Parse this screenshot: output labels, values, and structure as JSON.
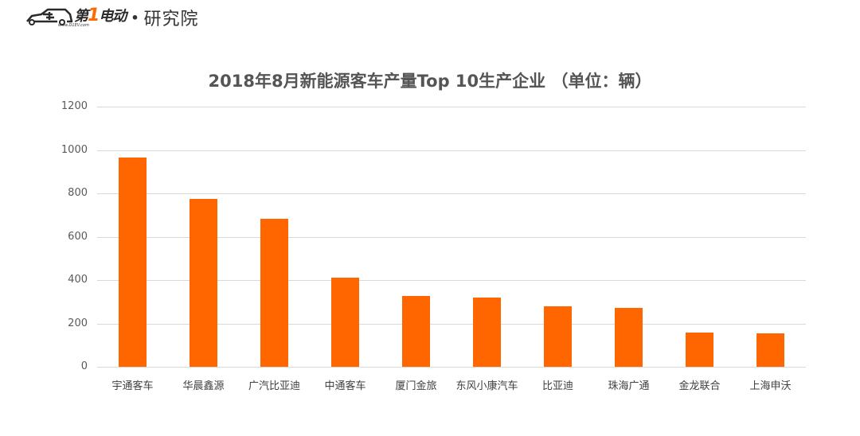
{
  "header": {
    "logo_brand_prefix": "第",
    "logo_brand_one": "1",
    "logo_brand_suffix": "电动",
    "logo_url": "www.D1EV.com",
    "logo_separator": "•",
    "logo_department": "研究院"
  },
  "colors": {
    "bar": "#ff6600",
    "accent": "#ff6a00",
    "grid": "#d9d9d9",
    "title": "#555555"
  },
  "chart_data": {
    "type": "bar",
    "title": "2018年8月新能源客车产量Top 10生产企业 （单位：辆）",
    "xlabel": "",
    "ylabel": "",
    "categories": [
      "宇通客车",
      "华晨鑫源",
      "广汽比亚迪",
      "中通客车",
      "厦门金旅",
      "东风小康汽车",
      "比亚迪",
      "珠海广通",
      "金龙联合",
      "上海申沃"
    ],
    "values": [
      967,
      774,
      683,
      411,
      327,
      321,
      280,
      273,
      159,
      154
    ],
    "ylim": [
      0,
      1200
    ],
    "yticks": [
      0,
      200,
      400,
      600,
      800,
      1000,
      1200
    ],
    "grid": true,
    "legend": null,
    "unit": "辆"
  }
}
